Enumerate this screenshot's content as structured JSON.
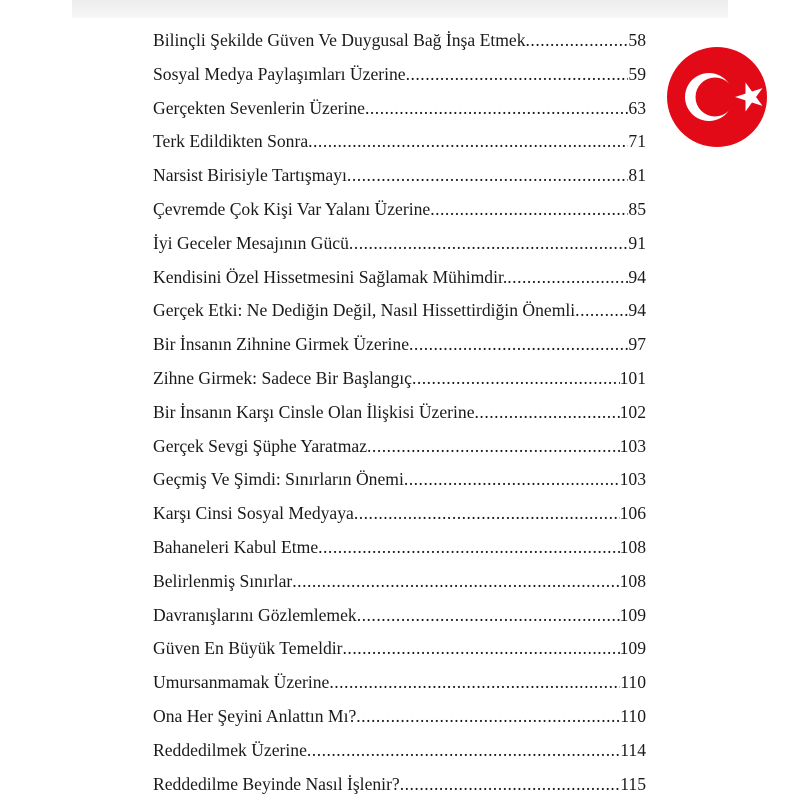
{
  "toc": [
    {
      "title": "Bilinçli Şekilde Güven Ve Duygusal Bağ İnşa Etmek",
      "page": "58"
    },
    {
      "title": "Sosyal Medya Paylaşımları Üzerine",
      "page": "59"
    },
    {
      "title": "Gerçekten Sevenlerin Üzerine",
      "page": "63"
    },
    {
      "title": "Terk Edildikten Sonra",
      "page": "71"
    },
    {
      "title": "Narsist Birisiyle Tartışmayı",
      "page": "81"
    },
    {
      "title": "Çevremde Çok Kişi Var Yalanı Üzerine",
      "page": "85"
    },
    {
      "title": "İyi Geceler Mesajının Gücü",
      "page": "91"
    },
    {
      "title": "Kendisini Özel Hissetmesini Sağlamak Mühimdir.",
      "page": "94"
    },
    {
      "title": "Gerçek Etki: Ne Dediğin Değil, Nasıl Hissettirdiğin Önemli",
      "page": "94"
    },
    {
      "title": "Bir İnsanın Zihnine Girmek Üzerine",
      "page": "97"
    },
    {
      "title": "Zihne Girmek: Sadece Bir Başlangıç",
      "page": "101"
    },
    {
      "title": "Bir İnsanın Karşı Cinsle Olan İlişkisi Üzerine",
      "page": "102"
    },
    {
      "title": "Gerçek Sevgi Şüphe Yaratmaz",
      "page": "103"
    },
    {
      "title": "Geçmiş Ve Şimdi: Sınırların Önemi",
      "page": "103"
    },
    {
      "title": "Karşı Cinsi Sosyal Medyaya",
      "page": "106"
    },
    {
      "title": "Bahaneleri Kabul Etme",
      "page": "108"
    },
    {
      "title": "Belirlenmiş Sınırlar",
      "page": "108"
    },
    {
      "title": "Davranışlarını Gözlemlemek",
      "page": "109"
    },
    {
      "title": "Güven En Büyük Temeldir",
      "page": "109"
    },
    {
      "title": "Umursanmamak Üzerine",
      "page": "110"
    },
    {
      "title": "Ona Her Şeyini Anlattın Mı?",
      "page": "110"
    },
    {
      "title": "Reddedilmek Üzerine",
      "page": "114"
    },
    {
      "title": "Reddedilme Beyinde Nasıl İşlenir?",
      "page": "115"
    }
  ],
  "flag": {
    "icon": "turkish-flag-icon",
    "color": "#e30a17"
  }
}
